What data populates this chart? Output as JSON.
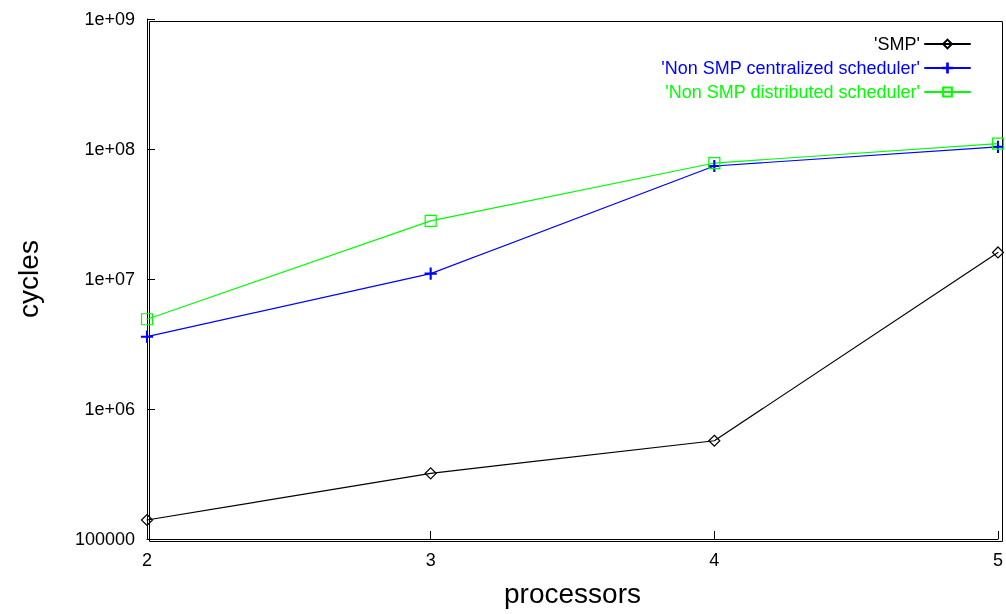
{
  "chart_data": {
    "type": "line",
    "xlabel": "processors",
    "ylabel": "cycles",
    "x": [
      2,
      3,
      4,
      5
    ],
    "xlim": [
      2,
      5
    ],
    "xticks": [
      2,
      3,
      4,
      5
    ],
    "log": "y",
    "ylim": [
      100000,
      1000000000
    ],
    "yticks": [
      {
        "value": 100000,
        "label": "100000"
      },
      {
        "value": 1000000,
        "label": "1e+06"
      },
      {
        "value": 10000000,
        "label": "1e+07"
      },
      {
        "value": 100000000,
        "label": "1e+08"
      },
      {
        "value": 1000000000,
        "label": "1e+09"
      }
    ],
    "grid": false,
    "legend": "top right",
    "line_style": "solid",
    "series": [
      {
        "name": "'SMP'",
        "color": "#000000",
        "marker": "diamond",
        "values": [
          140000,
          320000,
          570000,
          16000000
        ]
      },
      {
        "name": "'Non SMP centralized scheduler'",
        "color": "#0000ff",
        "marker": "cross",
        "values": [
          3600000,
          11000000,
          74000000,
          104000000
        ]
      },
      {
        "name": "'Non SMP distributed scheduler'",
        "color": "#00ff00",
        "marker": "square",
        "values": [
          4900000,
          28000000,
          78000000,
          110000000
        ]
      }
    ]
  }
}
